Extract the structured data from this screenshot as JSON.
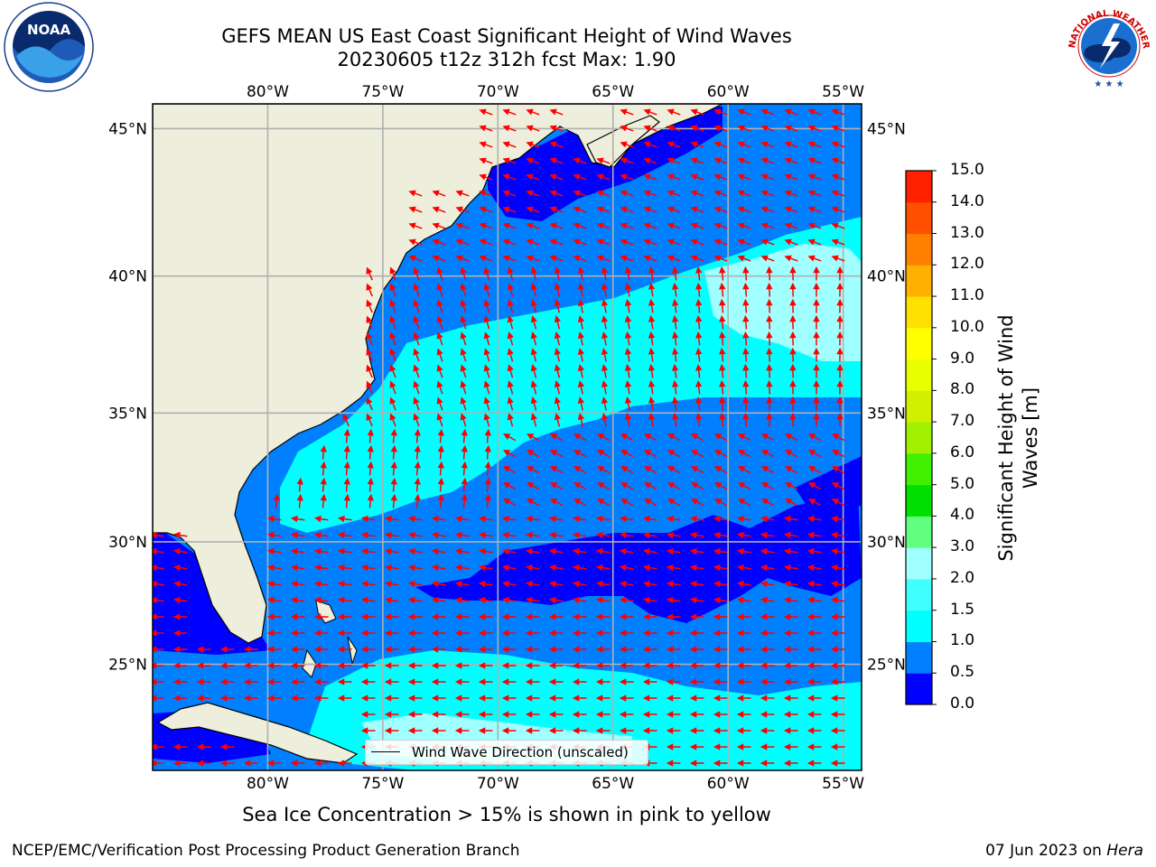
{
  "header": {
    "title_line1": "GEFS MEAN US East Coast Significant Height of Wind Waves",
    "title_line2": "20230605 t12z 312h fcst   Max: 1.90"
  },
  "logos": {
    "left": {
      "name": "noaa-logo",
      "text": "NOAA"
    },
    "right": {
      "name": "nws-logo",
      "text": "NATIONAL WEATHER SERVICE"
    }
  },
  "map": {
    "lon_labels": [
      "80°W",
      "75°W",
      "70°W",
      "65°W",
      "60°W",
      "55°W"
    ],
    "lat_labels": [
      "45°N",
      "40°N",
      "35°N",
      "30°N",
      "25°N"
    ],
    "extent": {
      "lon_min": -85,
      "lon_max": -54.2,
      "lat_min": 20.5,
      "lat_max": 45.8
    },
    "land_color": "#eeeedc",
    "arrow_color": "#ff0000",
    "legend_label": "Wind Wave Direction (unscaled)"
  },
  "colorbar": {
    "title": "Significant Height of Wind Waves [m]",
    "levels": [
      "0.0",
      "0.5",
      "1.0",
      "1.5",
      "2.0",
      "3.0",
      "4.0",
      "5.0",
      "6.0",
      "7.0",
      "8.0",
      "9.0",
      "10.0",
      "11.0",
      "12.0",
      "13.0",
      "14.0",
      "15.0"
    ],
    "colors": [
      "#0000ff",
      "#0080ff",
      "#00ffff",
      "#40ffff",
      "#a0ffff",
      "#60ff80",
      "#00e000",
      "#40f000",
      "#a0f000",
      "#d0f000",
      "#e8ff00",
      "#ffff00",
      "#ffe000",
      "#ffb000",
      "#ff8000",
      "#ff5000",
      "#ff2000"
    ]
  },
  "footer": {
    "note": "Sea Ice Concentration > 15% is shown in pink to yellow",
    "left": "NCEP/EMC/Verification Post Processing Product Generation Branch",
    "right_date": "07 Jun 2023 on ",
    "right_host": "Hera"
  }
}
